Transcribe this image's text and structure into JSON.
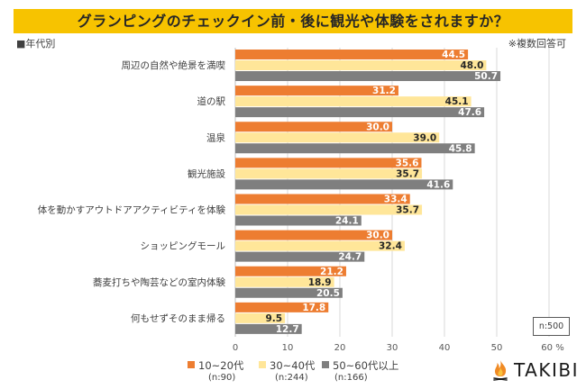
{
  "header": {
    "title": "グランピングのチェックイン前・後に観光や体験をされますか？",
    "subtitle_left": "■年代別",
    "subtitle_right": "※複数回答可"
  },
  "note": {
    "sample_size": "n:500"
  },
  "brand": {
    "logo_icon": "campfire-icon",
    "name": "TAKIBI"
  },
  "colors": {
    "banner": "#F7C300",
    "series_10_20": "#ED7D31",
    "series_30_40": "#FFE699",
    "series_50_60": "#7F7F7F"
  },
  "chart_data": {
    "type": "bar",
    "orientation": "horizontal",
    "title": "グランピングのチェックイン前・後に観光や体験をされますか？",
    "xlabel": "",
    "ylabel": "",
    "x_unit": "%",
    "xlim": [
      0,
      60
    ],
    "x_ticks": [
      "0",
      "10",
      "20",
      "30",
      "40",
      "50",
      "60 %"
    ],
    "grid": true,
    "legend_position": "bottom-left",
    "categories": [
      "周辺の自然や絶景を満喫",
      "道の駅",
      "温泉",
      "観光施設",
      "体を動かすアウトドアアクティビティを体験",
      "ショッピングモール",
      "蕎麦打ちや陶芸などの室内体験",
      "何もせずそのまま帰る"
    ],
    "series": [
      {
        "name": "10~20代",
        "n": "(n:90)",
        "color": "#ED7D31",
        "label_color": "#FFFFFF",
        "values": [
          44.5,
          31.2,
          30.0,
          35.6,
          33.4,
          30.0,
          21.2,
          17.8
        ]
      },
      {
        "name": "30~40代",
        "n": "(n:244)",
        "color": "#FFE699",
        "label_color": "#262626",
        "values": [
          48.0,
          45.1,
          39.0,
          35.7,
          35.7,
          32.4,
          18.9,
          9.5
        ]
      },
      {
        "name": "50~60代以上",
        "n": "(n:166)",
        "color": "#7F7F7F",
        "label_color": "#FFFFFF",
        "values": [
          50.7,
          47.6,
          45.8,
          41.6,
          24.1,
          24.7,
          20.5,
          12.7
        ]
      }
    ]
  }
}
